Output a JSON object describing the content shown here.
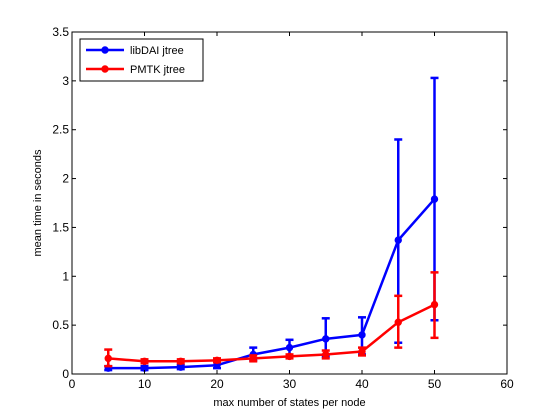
{
  "chart_data": {
    "type": "line",
    "xlabel": "max number of states per node",
    "ylabel": "mean time in seconds",
    "xlim": [
      0,
      60
    ],
    "ylim": [
      0,
      3.5
    ],
    "xticks": [
      0,
      10,
      20,
      30,
      40,
      50,
      60
    ],
    "yticks": [
      0,
      0.5,
      1,
      1.5,
      2,
      2.5,
      3,
      3.5
    ],
    "xtick_labels": [
      "0",
      "10",
      "20",
      "30",
      "40",
      "50",
      "60"
    ],
    "ytick_labels": [
      "0",
      "0.5",
      "1",
      "1.5",
      "2",
      "2.5",
      "3",
      "3.5"
    ],
    "grid": false,
    "legend_position": "top-left",
    "x": [
      5,
      10,
      15,
      20,
      25,
      30,
      35,
      40,
      45,
      50
    ],
    "series": [
      {
        "name": "libDAI jtree",
        "color": "#0000ff",
        "marker": "circle",
        "values": [
          0.06,
          0.06,
          0.07,
          0.09,
          0.2,
          0.27,
          0.36,
          0.4,
          1.37,
          1.79
        ],
        "err_low": [
          0.04,
          0.04,
          0.05,
          0.06,
          0.14,
          0.19,
          0.18,
          0.2,
          0.32,
          0.55
        ],
        "err_high": [
          0.08,
          0.08,
          0.09,
          0.12,
          0.27,
          0.35,
          0.57,
          0.58,
          2.4,
          3.03
        ]
      },
      {
        "name": "PMTK jtree",
        "color": "#ff0000",
        "marker": "circle",
        "values": [
          0.16,
          0.13,
          0.13,
          0.14,
          0.16,
          0.18,
          0.2,
          0.23,
          0.53,
          0.71
        ],
        "err_low": [
          0.08,
          0.11,
          0.11,
          0.12,
          0.13,
          0.16,
          0.16,
          0.19,
          0.27,
          0.37
        ],
        "err_high": [
          0.25,
          0.15,
          0.15,
          0.16,
          0.19,
          0.2,
          0.24,
          0.27,
          0.8,
          1.04
        ]
      }
    ]
  }
}
